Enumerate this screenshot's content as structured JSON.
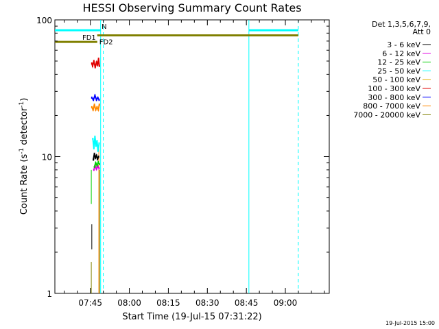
{
  "chart_data": {
    "type": "line",
    "title": "HESSI Observing Summary Count Rates",
    "xlabel": "Start Time (19-Jul-15 07:31:22)",
    "ylabel_parts": [
      "Count Rate (s",
      "-1",
      " detector",
      "-1",
      ")"
    ],
    "yscale": "log",
    "ylim": [
      1,
      100
    ],
    "x_axis_unit": "minutes after 07:31:22",
    "xlim_minutes": [
      0,
      105.5
    ],
    "x_ticks": [
      {
        "label": "07:45",
        "minutes": 13.63
      },
      {
        "label": "08:00",
        "minutes": 28.63
      },
      {
        "label": "08:15",
        "minutes": 43.63
      },
      {
        "label": "08:30",
        "minutes": 58.63
      },
      {
        "label": "08:45",
        "minutes": 73.63
      },
      {
        "label": "09:00",
        "minutes": 88.63
      }
    ],
    "y_ticks": [
      {
        "label": "1",
        "value": 1
      },
      {
        "label": "10",
        "value": 10
      },
      {
        "label": "100",
        "value": 100
      }
    ],
    "legend": {
      "placement": "right",
      "header": [
        "Det 1,3,5,6,7,9,",
        "Att 0"
      ],
      "entries": [
        {
          "label": "3 - 6 keV",
          "color": "#000000"
        },
        {
          "label": "6 - 12 keV",
          "color": "#e000e0"
        },
        {
          "label": "12 - 25 keV",
          "color": "#00d000"
        },
        {
          "label": "25 - 50 keV",
          "color": "#00ffff"
        },
        {
          "label": "50 - 100 keV",
          "color": "#e0b000"
        },
        {
          "label": "100 - 300 keV",
          "color": "#e00000"
        },
        {
          "label": "300 - 800 keV",
          "color": "#0000ff"
        },
        {
          "label": "800 - 7000 keV",
          "color": "#ff8800"
        },
        {
          "label": "7000 - 20000 keV",
          "color": "#808000"
        }
      ]
    },
    "series": [
      {
        "name": "100 - 300 keV",
        "color": "#e00000",
        "x": [
          14.2,
          14.5,
          15.0,
          15.5,
          16.0,
          16.4,
          16.8,
          17.1
        ],
        "y": [
          48,
          46,
          50,
          45,
          49,
          47,
          52,
          46
        ]
      },
      {
        "name": "300 - 800 keV",
        "color": "#0000ff",
        "x": [
          14.2,
          14.8,
          15.4,
          16.0,
          16.5,
          17.0
        ],
        "y": [
          27,
          26,
          28,
          26,
          27,
          26
        ]
      },
      {
        "name": "800 - 7000 keV",
        "color": "#ff8800",
        "x": [
          14.2,
          14.7,
          15.2,
          15.7,
          16.2,
          16.7,
          17.1
        ],
        "y": [
          23,
          22,
          24,
          22,
          23,
          22,
          24
        ]
      },
      {
        "name": "25 - 50 keV",
        "color": "#00ffff",
        "x": [
          14.6,
          15.0,
          15.4,
          15.8,
          16.2,
          16.6,
          17.0
        ],
        "y": [
          13.5,
          11.5,
          14,
          12,
          13,
          11,
          12.5
        ]
      },
      {
        "name": "3 - 6 keV",
        "color": "#000000",
        "x": [
          14.8,
          15.2,
          15.6,
          16.0,
          16.4,
          16.8
        ],
        "y": [
          9.5,
          10.5,
          9.8,
          10.2,
          9.6,
          10
        ]
      },
      {
        "name": "6 - 12 keV",
        "color": "#e000e0",
        "x": [
          15.0,
          15.5,
          16.0,
          16.5,
          17.0
        ],
        "y": [
          8.0,
          8.6,
          8.1,
          8.5,
          8.2
        ]
      },
      {
        "name": "12 - 25 keV",
        "color": "#00d000",
        "x": [
          15.2,
          15.7,
          16.2,
          16.7,
          17.1
        ],
        "y": [
          8.4,
          9.0,
          8.6,
          9.1,
          8.8
        ]
      }
    ],
    "spikes": [
      {
        "color": "#00d000",
        "x": 14.0,
        "y": [
          4.5,
          8
        ]
      },
      {
        "color": "#000000",
        "x": 14.2,
        "y": [
          2.1,
          3.2
        ]
      },
      {
        "color": "#808000",
        "x": 14.0,
        "y": [
          1,
          1.7
        ]
      },
      {
        "color": "#ff8800",
        "x": 16.9,
        "y": [
          1,
          12
        ]
      },
      {
        "color": "#808000",
        "x": 17.2,
        "y": [
          1,
          8
        ]
      }
    ],
    "flag_bars": [
      {
        "label": "N",
        "color": "#00ffff",
        "x0": 0,
        "x1": 17.7,
        "y": 84
      },
      {
        "label": "",
        "color": "#00ffff",
        "x0": 74.6,
        "x1": 93.6,
        "y": 84
      },
      {
        "label": "FD1",
        "color": "#808000",
        "x0": 0,
        "x1": 16.3,
        "y": 69
      },
      {
        "label": "FD2",
        "color": "#808000",
        "x0": 16.3,
        "x1": 93.6,
        "y": 77
      }
    ],
    "vertical_markers": [
      {
        "color": "#00ffff",
        "x": 17.6,
        "style": "solid"
      },
      {
        "color": "#00ffff",
        "x": 18.6,
        "style": "dashed"
      },
      {
        "color": "#00ffff",
        "x": 74.6,
        "style": "solid"
      },
      {
        "color": "#00ffff",
        "x": 93.6,
        "style": "dashed"
      }
    ],
    "timestamp": "19-Jul-2015 15:00"
  }
}
